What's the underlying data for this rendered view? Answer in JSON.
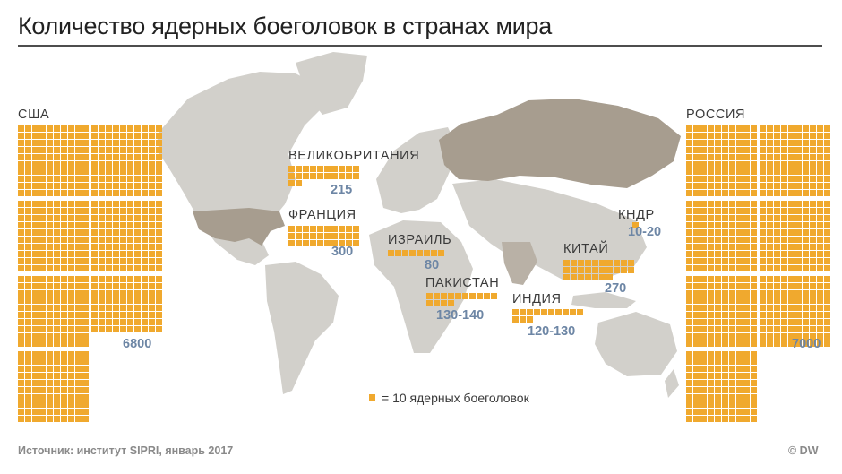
{
  "title": "Количество ядерных боеголовок в странах мира",
  "chart_data": {
    "type": "unit",
    "unit": "= 10 ядерных боеголовок",
    "countries": [
      {
        "label": "США",
        "value": "6800",
        "count": 6800
      },
      {
        "label": "ВЕЛИКОБРИТАНИЯ",
        "value": "215",
        "count": 215
      },
      {
        "label": "ФРАНЦИЯ",
        "value": "300",
        "count": 300
      },
      {
        "label": "ИЗРАИЛЬ",
        "value": "80",
        "count": 80
      },
      {
        "label": "ПАКИСТАН",
        "value": "130-140",
        "count": 135
      },
      {
        "label": "ИНДИЯ",
        "value": "120-130",
        "count": 125
      },
      {
        "label": "КИТАЙ",
        "value": "270",
        "count": 270
      },
      {
        "label": "КНДР",
        "value": "10-20",
        "count": 10
      },
      {
        "label": "РОССИЯ",
        "value": "7000",
        "count": 7000
      }
    ]
  },
  "colors": {
    "square": "#f0a92e",
    "map_land": "#d2d0cb",
    "map_highlight": "#a79d8f",
    "value_text": "#6d86a5"
  },
  "source": "Источник: институт SIPRI, январь 2017",
  "copyright": "© DW"
}
